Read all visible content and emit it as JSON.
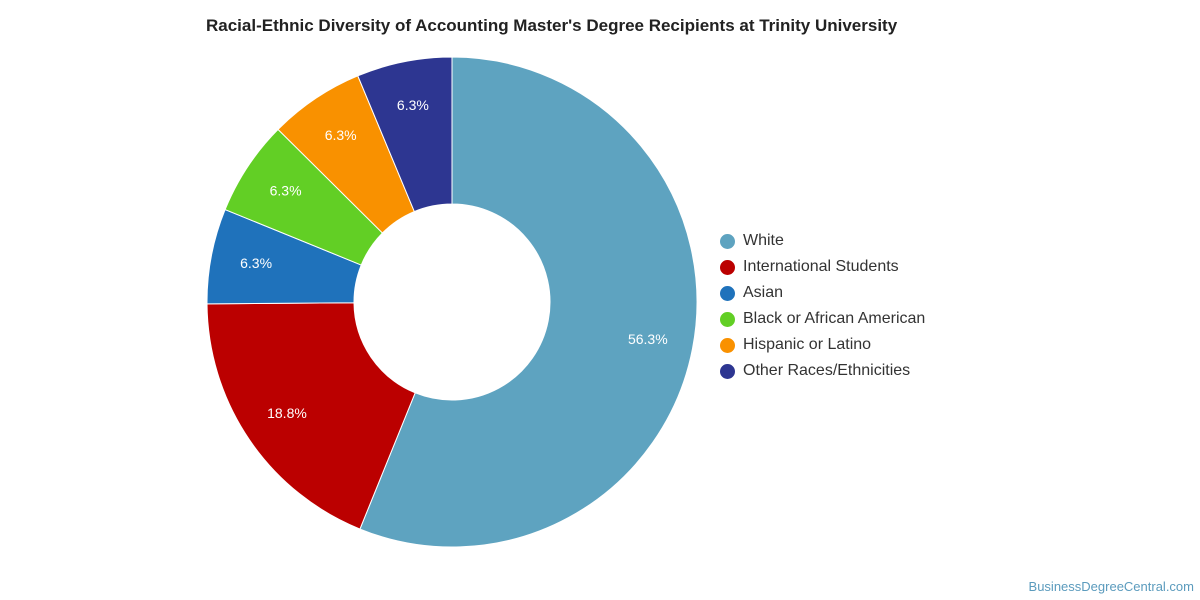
{
  "chart_data": {
    "type": "pie",
    "title": "Racial-Ethnic Diversity of Accounting Master's Degree Recipients at Trinity University",
    "categories": [
      "White",
      "International Students",
      "Asian",
      "Black or African American",
      "Hispanic or Latino",
      "Other Races/Ethnicities"
    ],
    "values": [
      56.3,
      18.8,
      6.3,
      6.3,
      6.3,
      6.3
    ],
    "labels": [
      "56.3%",
      "18.8%",
      "6.3%",
      "6.3%",
      "6.3%",
      "6.3%"
    ],
    "colors": [
      "#5ea3c0",
      "#bb0000",
      "#1f72bb",
      "#62cf25",
      "#f99100",
      "#2d3691"
    ],
    "donut": true,
    "legend_position": "right"
  },
  "footer": {
    "source": "BusinessDegreeCentral.com"
  }
}
